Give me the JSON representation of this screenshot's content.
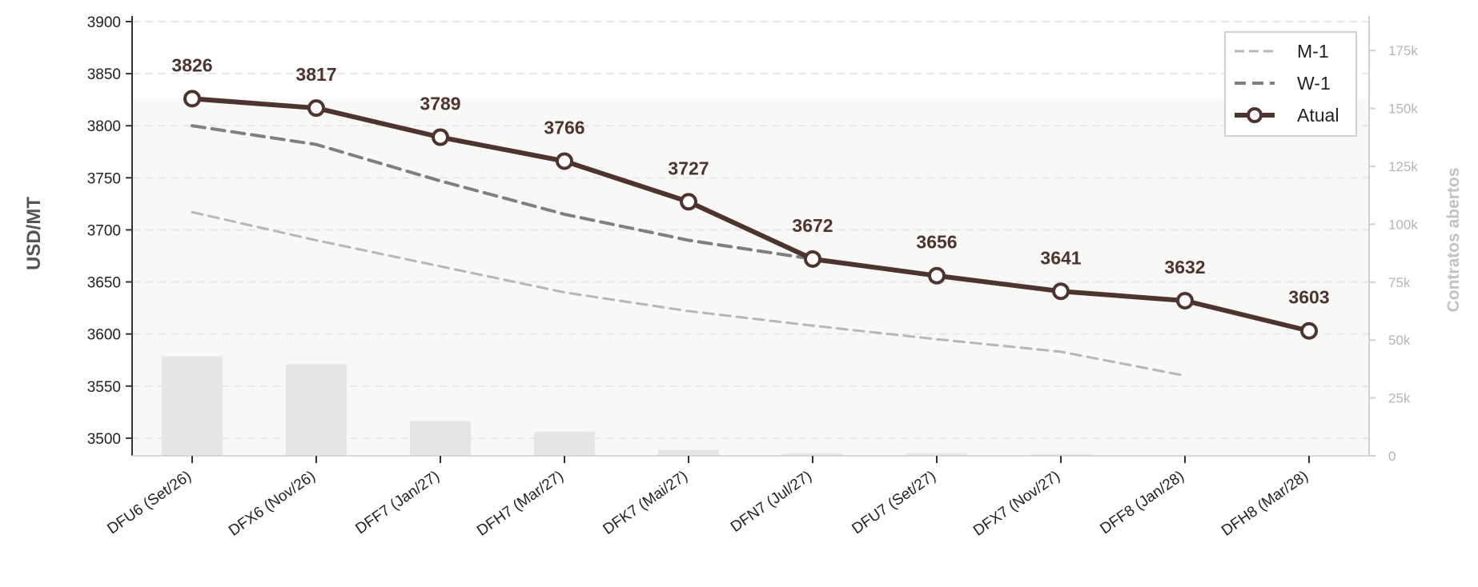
{
  "chart_data": {
    "type": "line",
    "categories": [
      "DFU6 (Set/26)",
      "DFX6 (Nov/26)",
      "DFF7 (Jan/27)",
      "DFH7 (Mar/27)",
      "DFK7 (Mai/27)",
      "DFN7 (Jul/27)",
      "DFU7 (Set/27)",
      "DFX7 (Nov/27)",
      "DFF8 (Jan/28)",
      "DFH8 (Mar/28)"
    ],
    "series": [
      {
        "name": "M-1",
        "style": "dashed-light",
        "color": "#b7b7b7",
        "values": [
          3717,
          3690,
          3665,
          3640,
          3622,
          3608,
          3595,
          3583,
          3560,
          null
        ]
      },
      {
        "name": "W-1",
        "style": "dashed",
        "color": "#7f7f7f",
        "values": [
          3800,
          3782,
          3747,
          3715,
          3690,
          3672,
          null,
          null,
          null,
          null
        ]
      },
      {
        "name": "Atual",
        "style": "solid-markers",
        "color": "#4e342e",
        "values": [
          3826,
          3817,
          3789,
          3766,
          3727,
          3672,
          3656,
          3641,
          3632,
          3603
        ],
        "data_labels": [
          "3826",
          "3817",
          "3789",
          "3766",
          "3727",
          "3672",
          "3656",
          "3641",
          "3632",
          "3603"
        ]
      }
    ],
    "bars": {
      "axis": "right",
      "color": "#e5e5e5",
      "values": [
        43000,
        39500,
        15000,
        10500,
        2500,
        1000,
        1000,
        800,
        0,
        0
      ]
    },
    "ylabel": "USD/MT",
    "ylim": [
      3483,
      3910
    ],
    "yticks": [
      "3500",
      "3550",
      "3600",
      "3650",
      "3700",
      "3750",
      "3800",
      "3850",
      "3900"
    ],
    "ylabel_right": "Contratos abertos",
    "ylim_right": [
      0,
      192000
    ],
    "yticks_right": [
      "0",
      "25k",
      "50k",
      "75k",
      "100k",
      "125k",
      "150k",
      "175k"
    ],
    "grid": "horizontal",
    "legend_position": "top-right"
  }
}
